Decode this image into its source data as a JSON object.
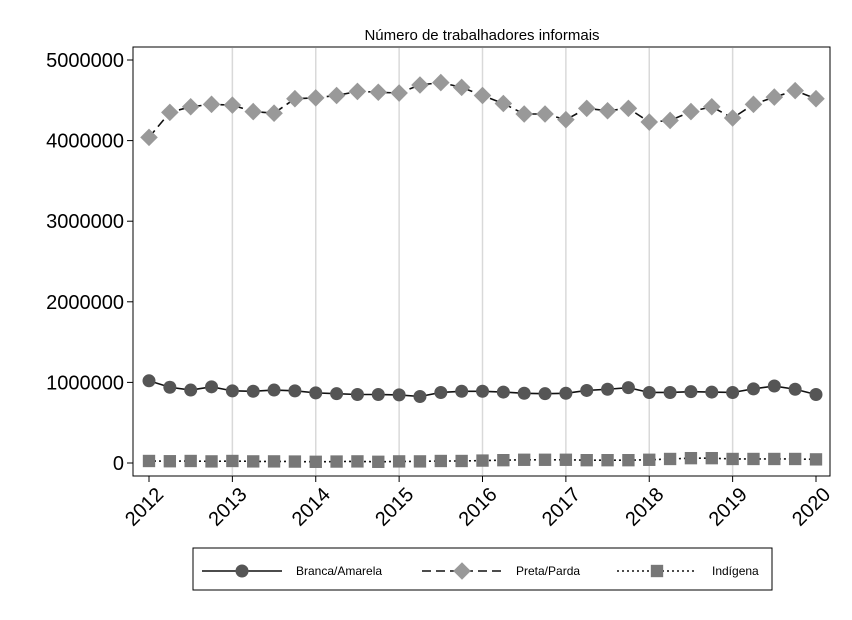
{
  "chart_data": {
    "type": "line",
    "title": "Número de trabalhadores informais",
    "xlabel": "",
    "ylabel": "",
    "xlim": [
      2012,
      2020
    ],
    "ylim": [
      0,
      5000000
    ],
    "x_ticks": [
      2012,
      2013,
      2014,
      2015,
      2016,
      2017,
      2018,
      2019,
      2020
    ],
    "x_tick_labels": [
      "2012",
      "2013",
      "2014",
      "2015",
      "2016",
      "2017",
      "2018",
      "2019",
      "2020"
    ],
    "y_ticks": [
      0,
      1000000,
      2000000,
      3000000,
      4000000,
      5000000
    ],
    "y_tick_labels": [
      "0",
      "1000000",
      "2000000",
      "3000000",
      "4000000",
      "5000000"
    ],
    "grid": "vertical",
    "legend_position": "bottom",
    "x": [
      2012.0,
      2012.25,
      2012.5,
      2012.75,
      2013.0,
      2013.25,
      2013.5,
      2013.75,
      2014.0,
      2014.25,
      2014.5,
      2014.75,
      2015.0,
      2015.25,
      2015.5,
      2015.75,
      2016.0,
      2016.25,
      2016.5,
      2016.75,
      2017.0,
      2017.25,
      2017.5,
      2017.75,
      2018.0,
      2018.25,
      2018.5,
      2018.75,
      2019.0,
      2019.25,
      2019.5,
      2019.75,
      2020.0
    ],
    "series": [
      {
        "name": "Branca/Amarela",
        "color": "#555555",
        "line_style": "solid",
        "marker": "circle",
        "values": [
          1020000,
          940000,
          905000,
          945000,
          895000,
          890000,
          905000,
          895000,
          870000,
          860000,
          850000,
          850000,
          845000,
          825000,
          875000,
          890000,
          890000,
          880000,
          865000,
          860000,
          865000,
          900000,
          915000,
          935000,
          875000,
          875000,
          885000,
          880000,
          875000,
          920000,
          955000,
          915000,
          850000
        ]
      },
      {
        "name": "Preta/Parda",
        "color": "#999999",
        "line_style": "dashed",
        "marker": "diamond",
        "values": [
          4040000,
          4350000,
          4420000,
          4450000,
          4440000,
          4360000,
          4340000,
          4520000,
          4530000,
          4560000,
          4610000,
          4600000,
          4590000,
          4690000,
          4720000,
          4660000,
          4560000,
          4460000,
          4330000,
          4330000,
          4260000,
          4400000,
          4370000,
          4400000,
          4230000,
          4250000,
          4360000,
          4420000,
          4280000,
          4450000,
          4540000,
          4620000,
          4520000
        ]
      },
      {
        "name": "Indígena",
        "color": "#777777",
        "line_style": "dotted",
        "marker": "square",
        "values": [
          25000,
          22000,
          25000,
          20000,
          25000,
          20000,
          20000,
          18000,
          15000,
          18000,
          20000,
          15000,
          20000,
          20000,
          25000,
          25000,
          30000,
          35000,
          40000,
          40000,
          40000,
          35000,
          35000,
          35000,
          40000,
          50000,
          60000,
          60000,
          50000,
          50000,
          50000,
          50000,
          45000
        ]
      }
    ]
  }
}
